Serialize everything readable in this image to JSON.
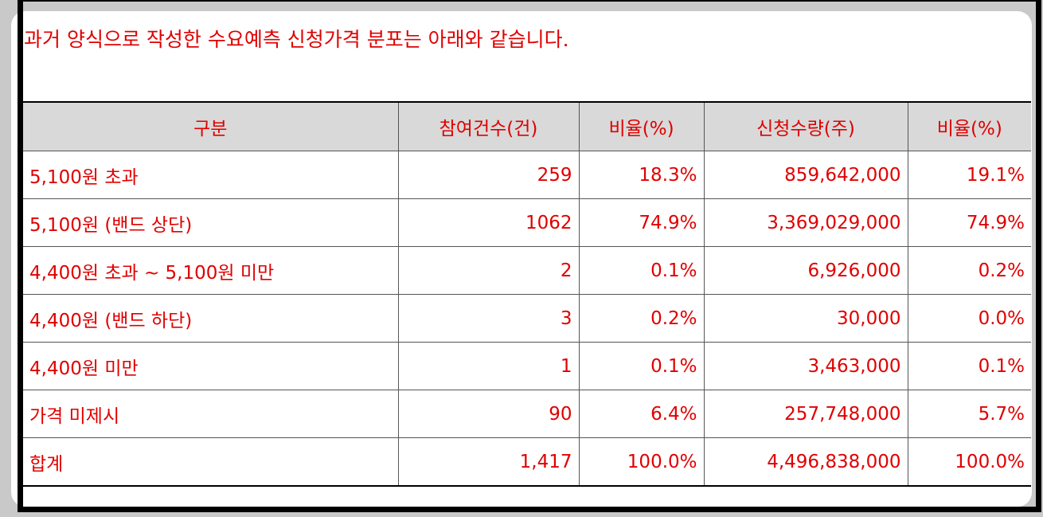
{
  "header": {
    "title": "과거 양식으로 작성한 수요예측 신청가격 분포는 아래와 같습니다."
  },
  "table": {
    "columns": [
      "구분",
      "참여건수(건)",
      "비율(%)",
      "신청수량(주)",
      "비율(%)"
    ],
    "rows": [
      [
        "5,100원 초과",
        "259",
        "18.3%",
        "859,642,000",
        "19.1%"
      ],
      [
        "5,100원 (밴드 상단)",
        "1062",
        "74.9%",
        "3,369,029,000",
        "74.9%"
      ],
      [
        "4,400원 초과 ~ 5,100원 미만",
        "2",
        "0.1%",
        "6,926,000",
        "0.2%"
      ],
      [
        "4,400원 (밴드 하단)",
        "3",
        "0.2%",
        "30,000",
        "0.0%"
      ],
      [
        "4,400원 미만",
        "1",
        "0.1%",
        "3,463,000",
        "0.1%"
      ],
      [
        "가격 미제시",
        "90",
        "6.4%",
        "257,748,000",
        "5.7%"
      ],
      [
        "합계",
        "1,417",
        "100.0%",
        "4,496,838,000",
        "100.0%"
      ]
    ]
  }
}
